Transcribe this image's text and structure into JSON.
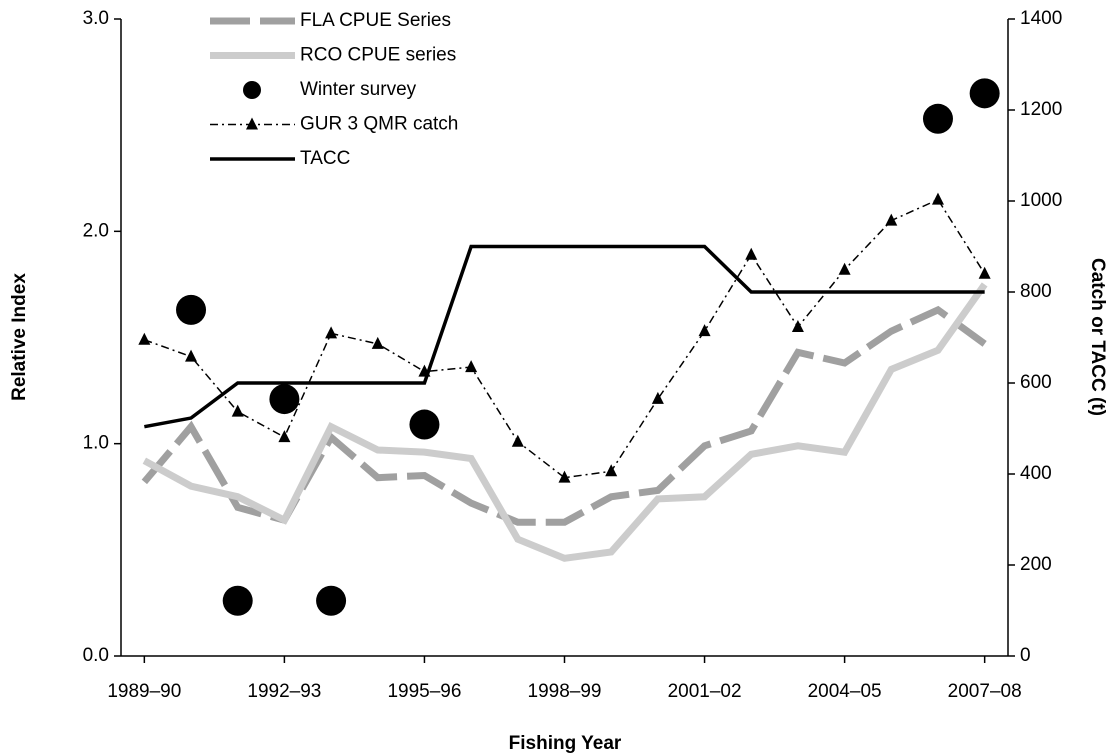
{
  "chart_data": {
    "type": "line",
    "xlabel": "Fishing Year",
    "ylabel": "Relative Index",
    "y2label": "Catch or TACC (t)",
    "categories": [
      "1989–90",
      null,
      null,
      "1992–93",
      null,
      null,
      "1995–96",
      null,
      null,
      "1998–99",
      null,
      null,
      "2001–02",
      null,
      null,
      "2004–05",
      null,
      null,
      "2007–08"
    ],
    "ylim": [
      0,
      3
    ],
    "yticks": [
      {
        "value": 0,
        "label": "0.0"
      },
      {
        "value": 1,
        "label": "1.0"
      },
      {
        "value": 2,
        "label": "2.0"
      },
      {
        "value": 3,
        "label": "3.0"
      }
    ],
    "y2lim": [
      0,
      1400
    ],
    "y2ticks": [
      0,
      200,
      400,
      600,
      800,
      1000,
      1200,
      1400
    ],
    "legend": "upper left",
    "series": [
      {
        "name": "FLA CPUE Series",
        "color": "#a0a0a0",
        "line_style": "dashed",
        "marker": "none",
        "values": [
          0.82,
          1.08,
          0.7,
          0.64,
          1.03,
          0.84,
          0.85,
          0.72,
          0.63,
          0.63,
          0.75,
          0.78,
          0.99,
          1.06,
          1.43,
          1.38,
          1.53,
          1.63,
          1.47
        ]
      },
      {
        "name": "RCO CPUE series",
        "color": "#cccccc",
        "line_style": "solid",
        "marker": "none",
        "values": [
          0.92,
          0.8,
          0.75,
          0.64,
          1.08,
          0.97,
          0.96,
          0.93,
          0.55,
          0.46,
          0.49,
          0.74,
          0.75,
          0.95,
          0.99,
          0.96,
          1.35,
          1.44,
          1.75
        ]
      },
      {
        "name": "Winter survey",
        "color": "#000000",
        "line_style": "none",
        "marker": "circle",
        "values": [
          null,
          1.63,
          0.26,
          1.21,
          0.26,
          null,
          1.09,
          null,
          null,
          null,
          null,
          null,
          null,
          null,
          null,
          null,
          null,
          2.53,
          2.65
        ]
      },
      {
        "name": "GUR 3 QMR catch",
        "color": "#000000",
        "line_style": "dashdot",
        "marker": "triangle",
        "axis": "y2",
        "values": [
          695,
          658,
          537,
          481,
          709,
          686,
          625,
          635,
          471,
          392,
          406,
          565,
          714,
          882,
          723,
          849,
          957,
          1003,
          840
        ]
      },
      {
        "name": "TACC",
        "color": "#000000",
        "line_style": "solid",
        "marker": "none",
        "axis": "y2",
        "values": [
          504,
          523,
          600,
          600,
          600,
          600,
          600,
          900,
          900,
          900,
          900,
          900,
          900,
          800,
          800,
          800,
          800,
          800,
          800
        ]
      }
    ]
  }
}
